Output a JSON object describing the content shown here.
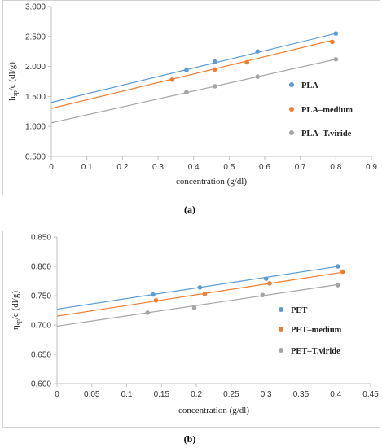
{
  "chart_data": [
    {
      "type": "scatter",
      "panel": "(a)",
      "xlabel": "concentration (g/dl)",
      "ylabel_main": "h",
      "ylabel_sub": "sp",
      "ylabel_rest": "/c (dl/g)",
      "xlim": [
        0,
        0.9
      ],
      "ylim": [
        0.5,
        3.0
      ],
      "xticks": [
        "0",
        "0.1",
        "0.2",
        "0.3",
        "0.4",
        "0.5",
        "0.6",
        "0.7",
        "0.8",
        "0.9"
      ],
      "yticks": [
        "0.500",
        "1.000",
        "1.500",
        "2.000",
        "2.500",
        "3.000"
      ],
      "legend_position": "right",
      "grid": false,
      "series": [
        {
          "name": "PLA",
          "color": "#5b9bd5",
          "points": [
            [
              0.38,
              1.94
            ],
            [
              0.46,
              2.08
            ],
            [
              0.58,
              2.25
            ],
            [
              0.8,
              2.55
            ]
          ],
          "trend": [
            1.4,
            1.438
          ]
        },
        {
          "name": "PLA–medium",
          "color": "#ed7d31",
          "points": [
            [
              0.34,
              1.78
            ],
            [
              0.46,
              1.95
            ],
            [
              0.55,
              2.07
            ],
            [
              0.79,
              2.41
            ]
          ],
          "trend": [
            1.3,
            1.438
          ]
        },
        {
          "name": "PLA–T.viride",
          "color": "#a5a5a5",
          "points": [
            [
              0.38,
              1.57
            ],
            [
              0.46,
              1.67
            ],
            [
              0.58,
              1.83
            ],
            [
              0.8,
              2.12
            ]
          ],
          "trend": [
            1.06,
            1.325
          ]
        }
      ]
    },
    {
      "type": "scatter",
      "panel": "(b)",
      "xlabel": "concentration (g/dl)",
      "ylabel_main": "η",
      "ylabel_sub": "sp",
      "ylabel_rest": "/c (dl/g)",
      "xlim": [
        0,
        0.45
      ],
      "ylim": [
        0.6,
        0.85
      ],
      "xticks": [
        "0",
        "0.05",
        "0.1",
        "0.15",
        "0.2",
        "0.25",
        "0.3",
        "0.35",
        "0.4",
        "0.45"
      ],
      "yticks": [
        "0.600",
        "0.650",
        "0.700",
        "0.750",
        "0.800",
        "0.850"
      ],
      "legend_position": "right",
      "grid": false,
      "series": [
        {
          "name": "PET",
          "color": "#5b9bd5",
          "points": [
            [
              0.138,
              0.752
            ],
            [
              0.205,
              0.764
            ],
            [
              0.3,
              0.779
            ],
            [
              0.403,
              0.8
            ]
          ],
          "trend": [
            0.727,
            0.181
          ]
        },
        {
          "name": "PET–medium",
          "color": "#ed7d31",
          "points": [
            [
              0.142,
              0.742
            ],
            [
              0.212,
              0.753
            ],
            [
              0.305,
              0.771
            ],
            [
              0.41,
              0.791
            ]
          ],
          "trend": [
            0.715,
            0.183
          ]
        },
        {
          "name": "PET–T.viride",
          "color": "#a5a5a5",
          "points": [
            [
              0.13,
              0.721
            ],
            [
              0.197,
              0.729
            ],
            [
              0.295,
              0.751
            ],
            [
              0.403,
              0.768
            ]
          ],
          "trend": [
            0.698,
            0.176
          ]
        }
      ]
    }
  ]
}
